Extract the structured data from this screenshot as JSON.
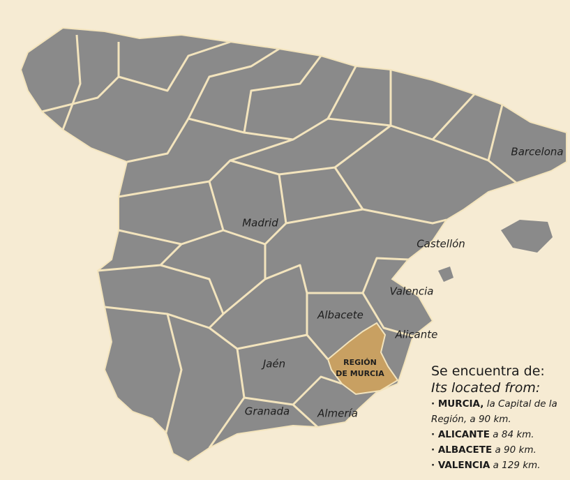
{
  "map": {
    "labels": [
      {
        "text": "Barcelona"
      },
      {
        "text": "Madrid"
      },
      {
        "text": "Castellón"
      },
      {
        "text": "Valencia"
      },
      {
        "text": "Albacete"
      },
      {
        "text": "Alicante"
      },
      {
        "text": "Jaén"
      },
      {
        "text": "Granada"
      },
      {
        "text": "Almería"
      }
    ],
    "region": {
      "line1": "REGIÓN",
      "line2": "DE MURCIA"
    }
  },
  "legend": {
    "heading": "Se encuentra de:",
    "subheading": "Its located from:",
    "items": [
      {
        "name": "· MURCIA,",
        "text": "la Capital de la Región, a 90 km."
      },
      {
        "name": "· ALICANTE",
        "text": "a 84 km."
      },
      {
        "name": "· ALBACETE",
        "text": "a 90 km."
      },
      {
        "name": "· VALENCIA",
        "text": "a 129 km."
      }
    ]
  }
}
